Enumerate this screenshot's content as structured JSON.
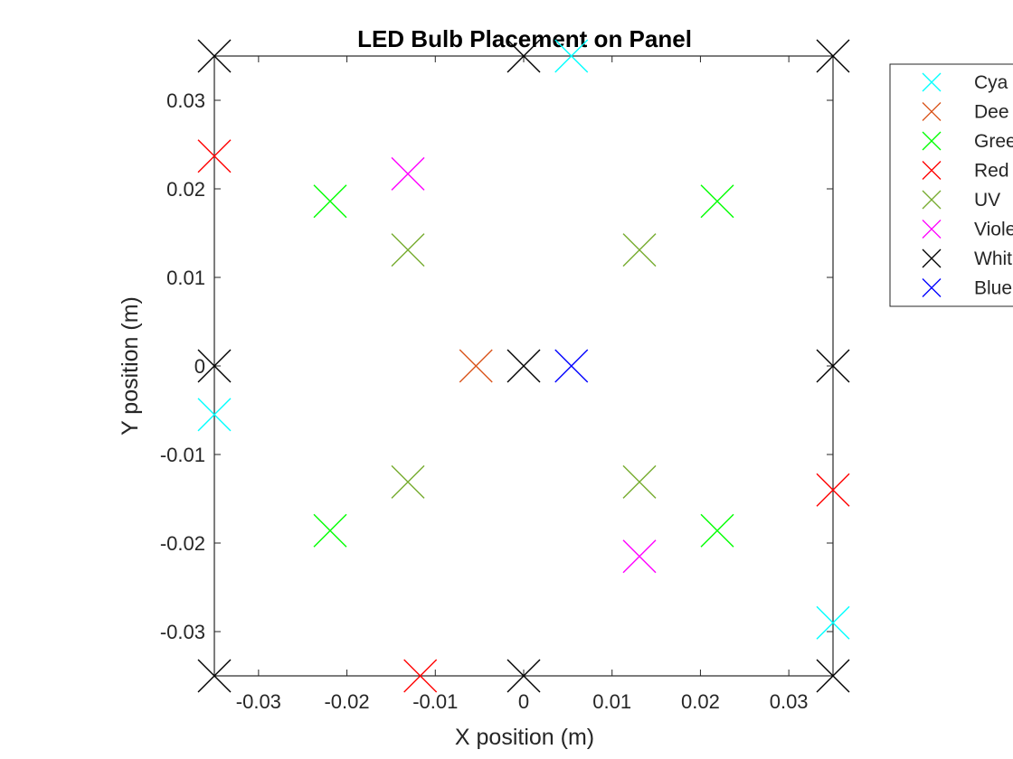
{
  "chart_data": {
    "type": "scatter",
    "title": "LED Bulb Placement on Panel",
    "xlabel": "X position (m)",
    "ylabel": "Y position (m)",
    "xlim": [
      -0.035,
      0.035
    ],
    "ylim": [
      -0.035,
      0.035
    ],
    "x_ticks": [
      -0.03,
      -0.02,
      -0.01,
      0,
      0.01,
      0.02,
      0.03
    ],
    "x_tick_labels": [
      "-0.03",
      "-0.02",
      "-0.01",
      "0",
      "0.01",
      "0.02",
      "0.03"
    ],
    "y_ticks": [
      -0.03,
      -0.02,
      -0.01,
      0,
      0.01,
      0.02,
      0.03
    ],
    "y_tick_labels": [
      "-0.03",
      "-0.02",
      "-0.01",
      "0",
      "0.01",
      "0.02",
      "0.03"
    ],
    "grid": false,
    "marker": "x",
    "legend_position": "outside-top-right",
    "series": [
      {
        "name": "Cya",
        "color": "#00ffff",
        "points": [
          [
            0.0054,
            0.035
          ],
          [
            -0.035,
            -0.0055
          ],
          [
            0.035,
            -0.029
          ]
        ]
      },
      {
        "name": "Dee",
        "color": "#d95319",
        "points": [
          [
            -0.0054,
            0.0
          ]
        ]
      },
      {
        "name": "Gree",
        "color": "#00ff00",
        "points": [
          [
            -0.0219,
            0.0186
          ],
          [
            0.0219,
            0.0186
          ],
          [
            -0.0219,
            -0.0186
          ],
          [
            0.0219,
            -0.0186
          ]
        ]
      },
      {
        "name": "Red",
        "color": "#ff0000",
        "points": [
          [
            -0.035,
            0.0237
          ],
          [
            0.035,
            -0.014
          ],
          [
            -0.0117,
            -0.035
          ]
        ]
      },
      {
        "name": "UV",
        "color": "#77ac30",
        "points": [
          [
            -0.0131,
            0.0131
          ],
          [
            0.0131,
            0.0131
          ],
          [
            -0.0131,
            -0.0131
          ],
          [
            0.0131,
            -0.0131
          ]
        ]
      },
      {
        "name": "Viole",
        "color": "#ff00ff",
        "points": [
          [
            -0.0131,
            0.0217
          ],
          [
            0.0131,
            -0.0215
          ]
        ]
      },
      {
        "name": "Whit",
        "color": "#000000",
        "points": [
          [
            -0.035,
            0.035
          ],
          [
            0.0,
            0.035
          ],
          [
            0.035,
            0.035
          ],
          [
            -0.035,
            0.0
          ],
          [
            0.0,
            0.0
          ],
          [
            0.035,
            0.0
          ],
          [
            -0.035,
            -0.035
          ],
          [
            0.0,
            -0.035
          ],
          [
            0.035,
            -0.035
          ]
        ]
      },
      {
        "name": "Blue",
        "color": "#0000ff",
        "points": [
          [
            0.0054,
            0.0
          ]
        ]
      }
    ]
  }
}
